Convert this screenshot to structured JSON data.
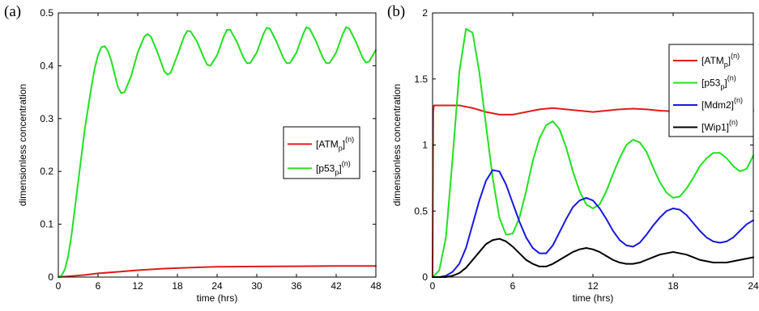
{
  "chart_data": [
    {
      "type": "line",
      "panel_label": "(a)",
      "xlabel": "time (hrs)",
      "ylabel": "dimensionless concentration",
      "xlim": [
        0,
        48
      ],
      "ylim": [
        0,
        0.5
      ],
      "xticks": [
        "0",
        "6",
        "12",
        "18",
        "24",
        "30",
        "36",
        "42",
        "48"
      ],
      "yticks": [
        "0",
        "0.1",
        "0.2",
        "0.3",
        "0.4",
        "0.5"
      ],
      "grid": false,
      "legend_position": "center-right",
      "series": [
        {
          "name": "[ATMp](n)",
          "legend_base": "[ATM",
          "legend_sub": "p",
          "legend_end": "]",
          "legend_sup": "(n)",
          "color": "#e01b1b",
          "x": [
            0,
            1,
            2,
            4,
            6,
            9,
            12,
            16,
            20,
            24,
            30,
            36,
            42,
            48
          ],
          "y": [
            0,
            0.001,
            0.002,
            0.004,
            0.007,
            0.01,
            0.013,
            0.016,
            0.018,
            0.0195,
            0.02,
            0.0205,
            0.021,
            0.021
          ]
        },
        {
          "name": "[p53p](n)",
          "legend_base": "[p53",
          "legend_sub": "p",
          "legend_end": "]",
          "legend_sup": "(n)",
          "color": "#22e022",
          "x": [
            0,
            0.5,
            1,
            1.5,
            2,
            2.5,
            3,
            3.5,
            4,
            4.5,
            5,
            5.5,
            6,
            6.5,
            7,
            7.5,
            8,
            8.5,
            9,
            9.5,
            10,
            11,
            12,
            13,
            13.5,
            14,
            15,
            16,
            16.5,
            17,
            18,
            19,
            19.5,
            20,
            21,
            22,
            22.5,
            23,
            24,
            25,
            25.5,
            26,
            27,
            28,
            28.5,
            29,
            30,
            31,
            31.5,
            32,
            33,
            34,
            34.5,
            35,
            36,
            37,
            37.5,
            38,
            39,
            40,
            40.5,
            41,
            42,
            43,
            43.5,
            44,
            45,
            46,
            46.5,
            47,
            48
          ],
          "y": [
            0,
            0.003,
            0.015,
            0.04,
            0.08,
            0.13,
            0.18,
            0.23,
            0.28,
            0.32,
            0.36,
            0.395,
            0.42,
            0.435,
            0.437,
            0.428,
            0.41,
            0.385,
            0.36,
            0.348,
            0.35,
            0.38,
            0.425,
            0.455,
            0.46,
            0.455,
            0.425,
            0.39,
            0.383,
            0.387,
            0.42,
            0.455,
            0.466,
            0.465,
            0.445,
            0.415,
            0.402,
            0.4,
            0.42,
            0.455,
            0.468,
            0.468,
            0.445,
            0.415,
            0.405,
            0.405,
            0.425,
            0.46,
            0.472,
            0.47,
            0.445,
            0.415,
            0.405,
            0.405,
            0.425,
            0.46,
            0.473,
            0.47,
            0.445,
            0.415,
            0.405,
            0.405,
            0.425,
            0.46,
            0.473,
            0.47,
            0.445,
            0.415,
            0.406,
            0.408,
            0.43
          ]
        }
      ]
    },
    {
      "type": "line",
      "panel_label": "(b)",
      "xlabel": "time (hrs)",
      "ylabel": "dimensionless concentration",
      "xlim": [
        0,
        24
      ],
      "ylim": [
        0,
        2
      ],
      "xticks": [
        "0",
        "6",
        "12",
        "18",
        "24"
      ],
      "yticks": [
        "0",
        "0.5",
        "1",
        "1.5",
        "2"
      ],
      "grid": false,
      "legend_position": "top-right",
      "series": [
        {
          "name": "[ATMp](n)",
          "legend_base": "[ATM",
          "legend_sub": "p",
          "legend_end": "]",
          "legend_sup": "(n)",
          "color": "#e01b1b",
          "x": [
            0,
            0.05,
            0.1,
            1,
            2,
            3,
            4,
            5,
            6,
            7,
            8,
            9,
            10,
            11,
            12,
            13,
            14,
            15,
            16,
            17,
            18,
            19,
            20,
            21,
            22,
            23,
            24
          ],
          "y": [
            0,
            1.25,
            1.3,
            1.3,
            1.3,
            1.28,
            1.25,
            1.23,
            1.23,
            1.25,
            1.27,
            1.28,
            1.27,
            1.26,
            1.25,
            1.26,
            1.27,
            1.275,
            1.27,
            1.26,
            1.255,
            1.26,
            1.27,
            1.27,
            1.265,
            1.26,
            1.26
          ]
        },
        {
          "name": "[p53p](n)",
          "legend_base": "[p53",
          "legend_sub": "p",
          "legend_end": "]",
          "legend_sup": "(n)",
          "color": "#22e022",
          "x": [
            0,
            0.5,
            1,
            1.5,
            2,
            2.5,
            3,
            3.5,
            4,
            4.5,
            5,
            5.5,
            6,
            6.5,
            7,
            7.5,
            8,
            8.5,
            9,
            9.5,
            10,
            10.5,
            11,
            11.5,
            12,
            12.5,
            13,
            13.5,
            14,
            14.5,
            15,
            15.5,
            16,
            16.5,
            17,
            17.5,
            18,
            18.5,
            19,
            19.5,
            20,
            20.5,
            21,
            21.5,
            22,
            22.5,
            23,
            23.5,
            24
          ],
          "y": [
            0,
            0.05,
            0.3,
            0.9,
            1.55,
            1.88,
            1.85,
            1.55,
            1.15,
            0.75,
            0.45,
            0.32,
            0.33,
            0.45,
            0.65,
            0.88,
            1.05,
            1.15,
            1.18,
            1.12,
            0.98,
            0.8,
            0.65,
            0.55,
            0.52,
            0.55,
            0.65,
            0.78,
            0.9,
            1.0,
            1.04,
            1.02,
            0.95,
            0.83,
            0.72,
            0.64,
            0.6,
            0.61,
            0.67,
            0.75,
            0.84,
            0.9,
            0.94,
            0.94,
            0.9,
            0.84,
            0.8,
            0.82,
            0.92
          ]
        },
        {
          "name": "[Mdm2](n)",
          "legend_base": "[Mdm2]",
          "legend_sub": "",
          "legend_end": "",
          "legend_sup": "(n)",
          "color": "#1818dd",
          "x": [
            0,
            0.5,
            1,
            1.5,
            2,
            2.5,
            3,
            3.5,
            4,
            4.5,
            5,
            5.5,
            6,
            6.5,
            7,
            7.5,
            8,
            8.5,
            9,
            9.5,
            10,
            10.5,
            11,
            11.5,
            12,
            12.5,
            13,
            13.5,
            14,
            14.5,
            15,
            15.5,
            16,
            16.5,
            17,
            17.5,
            18,
            18.5,
            19,
            19.5,
            20,
            20.5,
            21,
            21.5,
            22,
            22.5,
            23,
            23.5,
            24
          ],
          "y": [
            0,
            0.0,
            0.01,
            0.04,
            0.1,
            0.22,
            0.4,
            0.58,
            0.73,
            0.81,
            0.8,
            0.7,
            0.56,
            0.42,
            0.3,
            0.22,
            0.18,
            0.18,
            0.24,
            0.34,
            0.44,
            0.53,
            0.58,
            0.6,
            0.58,
            0.52,
            0.44,
            0.35,
            0.28,
            0.24,
            0.23,
            0.26,
            0.32,
            0.39,
            0.45,
            0.5,
            0.52,
            0.51,
            0.47,
            0.41,
            0.35,
            0.3,
            0.27,
            0.26,
            0.27,
            0.3,
            0.35,
            0.4,
            0.43
          ]
        },
        {
          "name": "[Wip1](n)",
          "legend_base": "[Wip1]",
          "legend_sub": "",
          "legend_end": "",
          "legend_sup": "(n)",
          "color": "#000000",
          "x": [
            0,
            0.5,
            1,
            1.5,
            2,
            2.5,
            3,
            3.5,
            4,
            4.5,
            5,
            5.5,
            6,
            6.5,
            7,
            7.5,
            8,
            8.5,
            9,
            9.5,
            10,
            10.5,
            11,
            11.5,
            12,
            12.5,
            13,
            13.5,
            14,
            14.5,
            15,
            15.5,
            16,
            16.5,
            17,
            17.5,
            18,
            18.5,
            19,
            19.5,
            20,
            20.5,
            21,
            21.5,
            22,
            22.5,
            23,
            23.5,
            24
          ],
          "y": [
            0,
            0.0,
            0.0,
            0.01,
            0.03,
            0.07,
            0.13,
            0.19,
            0.25,
            0.28,
            0.29,
            0.27,
            0.23,
            0.18,
            0.13,
            0.1,
            0.08,
            0.08,
            0.1,
            0.13,
            0.16,
            0.19,
            0.21,
            0.22,
            0.21,
            0.19,
            0.16,
            0.13,
            0.11,
            0.1,
            0.1,
            0.11,
            0.13,
            0.15,
            0.17,
            0.18,
            0.19,
            0.18,
            0.17,
            0.15,
            0.13,
            0.12,
            0.11,
            0.11,
            0.11,
            0.12,
            0.13,
            0.14,
            0.15
          ]
        }
      ]
    }
  ]
}
